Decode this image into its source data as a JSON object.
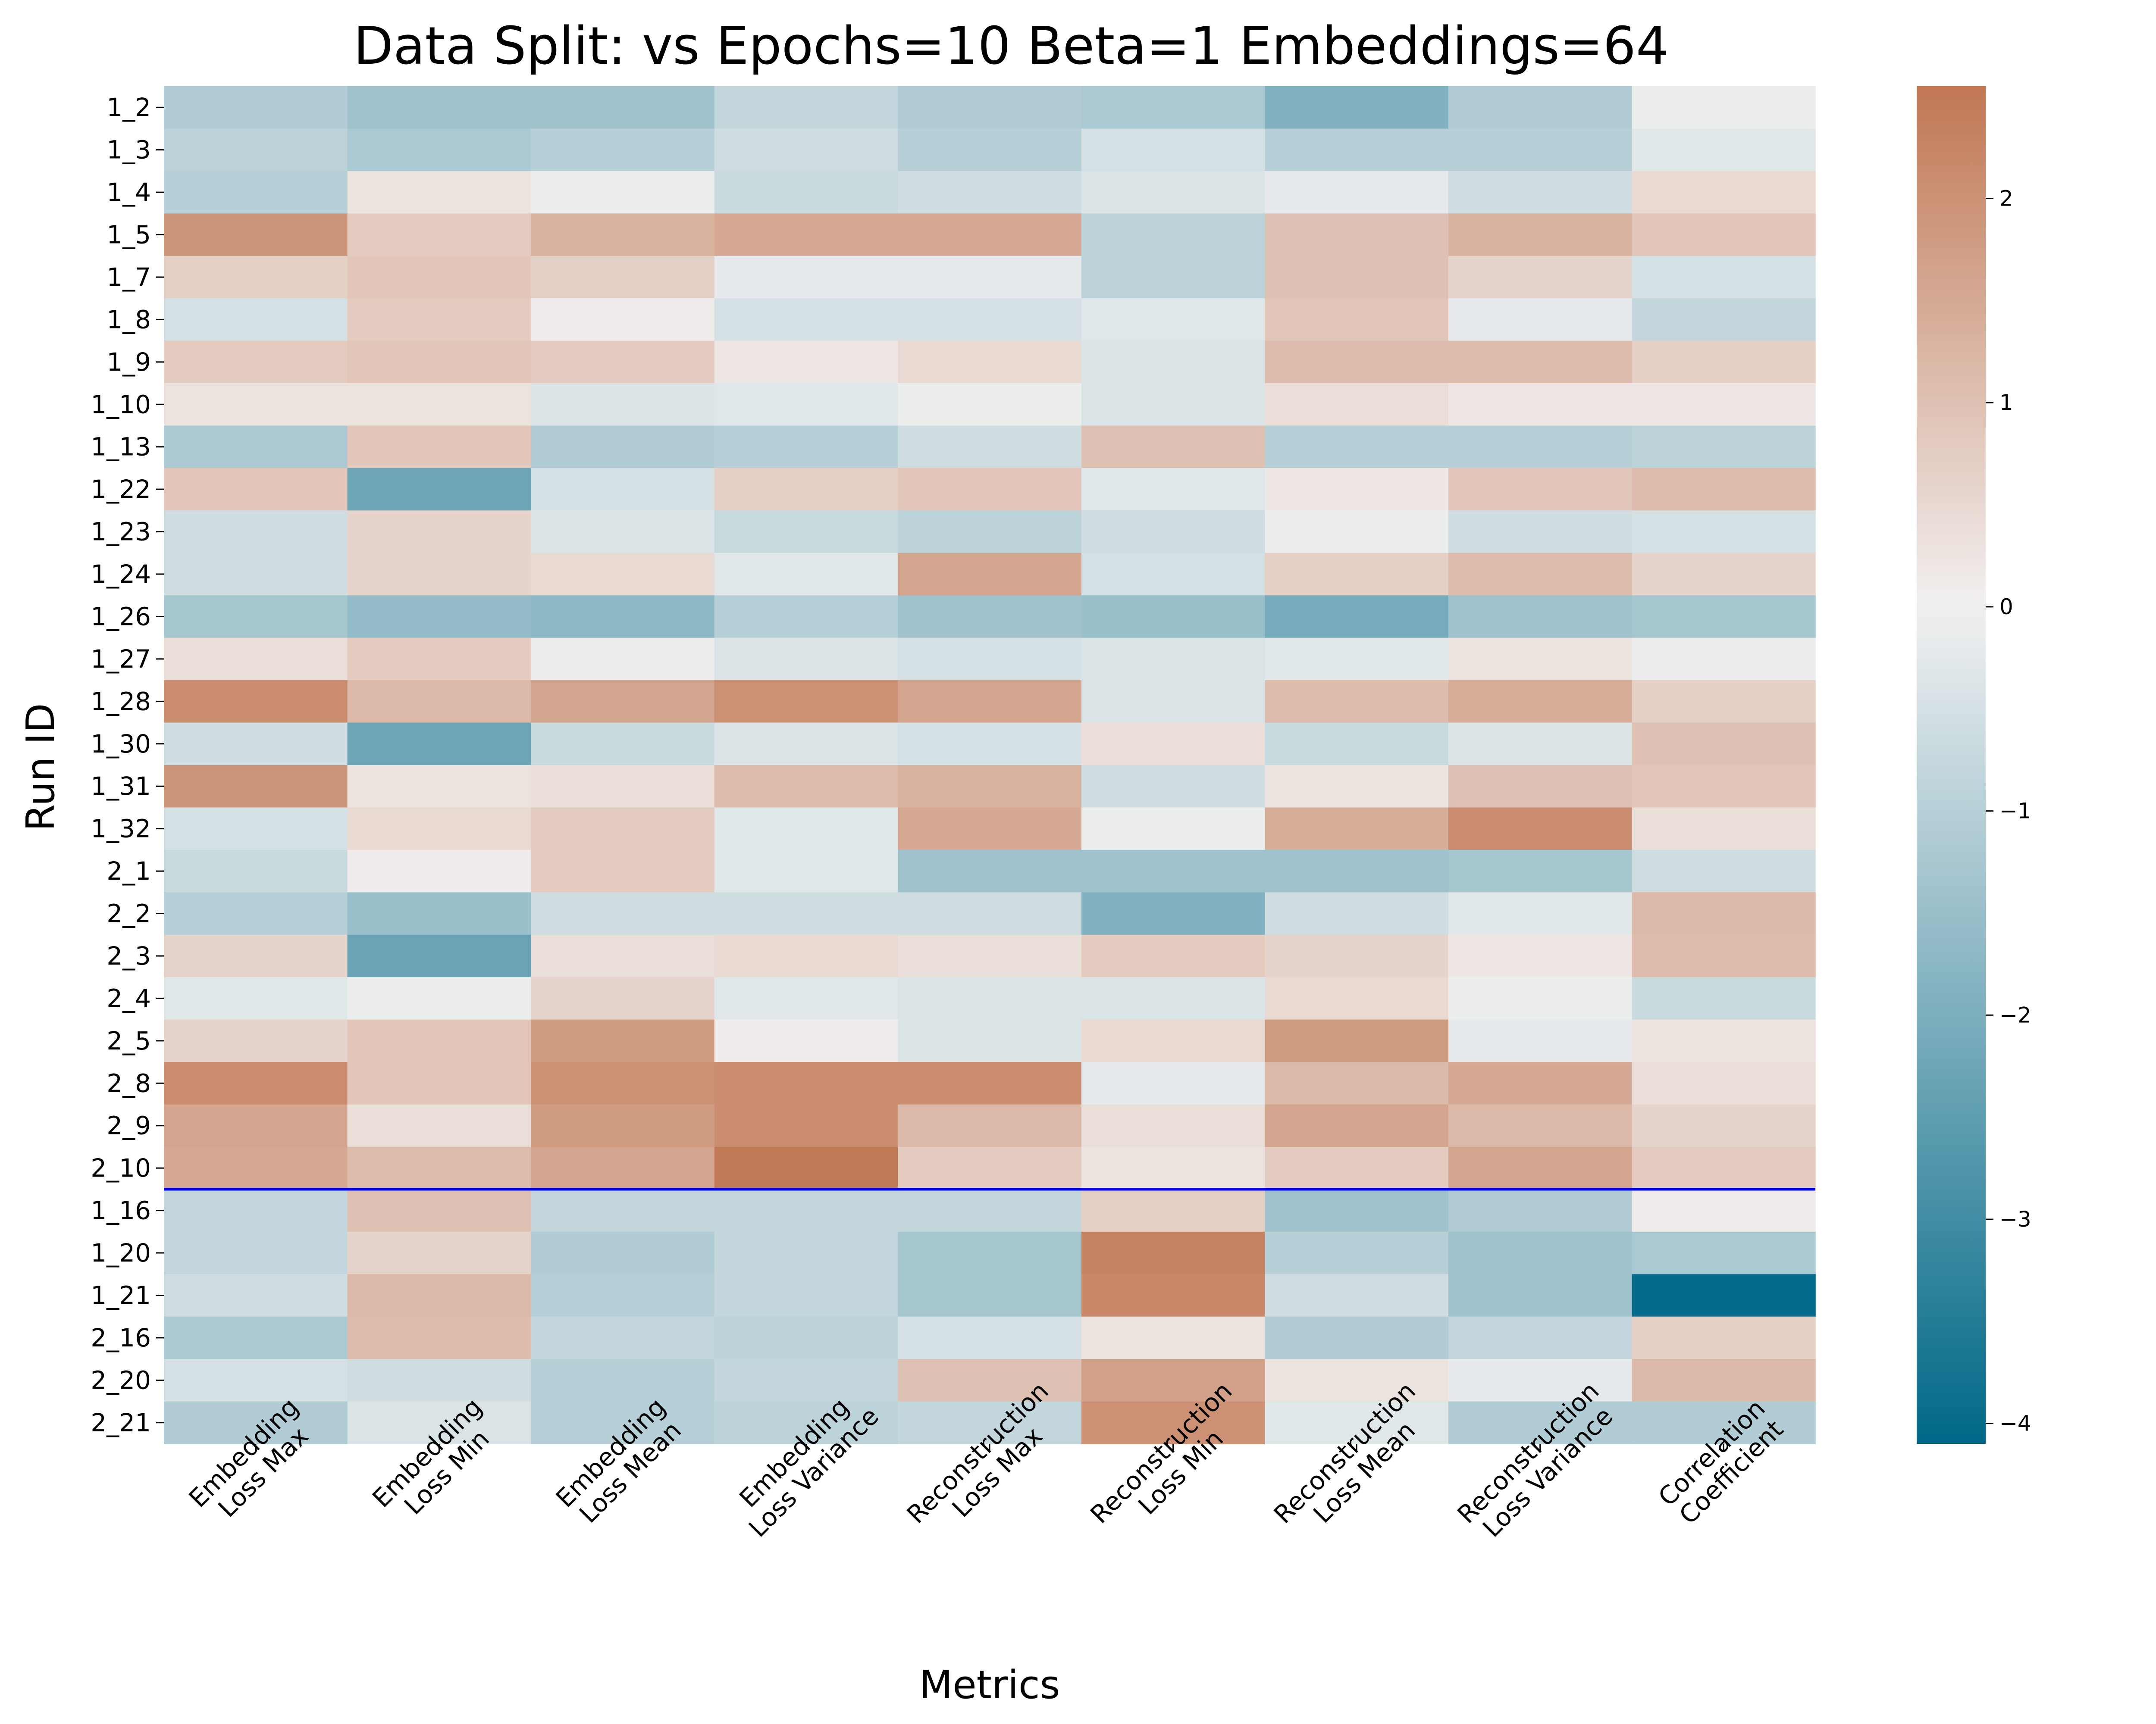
{
  "chart_data": {
    "type": "heatmap",
    "title": "Data Split: vs Epochs=10 Beta=1 Embeddings=64",
    "xlabel": "Metrics",
    "ylabel": "Run ID",
    "columns": [
      [
        "Embedding",
        "Loss Max"
      ],
      [
        "Embedding",
        "Loss Min"
      ],
      [
        "Embedding",
        "Loss Mean"
      ],
      [
        "Embedding",
        "Loss Variance"
      ],
      [
        "Reconstruction",
        "Loss Max"
      ],
      [
        "Reconstruction",
        "Loss Min"
      ],
      [
        "Reconstruction",
        "Loss Mean"
      ],
      [
        "Reconstruction",
        "Loss Variance"
      ],
      [
        "Correlation",
        "Coefficient"
      ]
    ],
    "rows": [
      "1_2",
      "1_3",
      "1_4",
      "1_5",
      "1_7",
      "1_8",
      "1_9",
      "1_10",
      "1_13",
      "1_22",
      "1_23",
      "1_24",
      "1_26",
      "1_27",
      "1_28",
      "1_30",
      "1_31",
      "1_32",
      "2_1",
      "2_2",
      "2_3",
      "2_4",
      "2_5",
      "2_8",
      "2_9",
      "2_10",
      "1_16",
      "1_20",
      "1_21",
      "2_16",
      "2_20",
      "2_21"
    ],
    "values": [
      [
        -1.1,
        -1.4,
        -1.4,
        -0.8,
        -1.1,
        -1.2,
        -1.9,
        -1.1,
        -0.1
      ],
      [
        -0.9,
        -1.2,
        -1.0,
        -0.6,
        -1.0,
        -0.5,
        -1.0,
        -1.0,
        -0.3
      ],
      [
        -1.0,
        0.3,
        -0.1,
        -0.7,
        -0.6,
        -0.4,
        -0.2,
        -0.6,
        0.5
      ],
      [
        1.9,
        0.8,
        1.3,
        1.5,
        1.5,
        -0.9,
        1.0,
        1.3,
        0.9
      ],
      [
        0.7,
        0.9,
        0.7,
        -0.2,
        -0.2,
        -0.9,
        1.0,
        0.6,
        -0.5
      ],
      [
        -0.5,
        0.8,
        0.1,
        -0.5,
        -0.5,
        -0.3,
        0.9,
        -0.2,
        -0.8
      ],
      [
        0.8,
        0.9,
        0.8,
        0.2,
        0.5,
        -0.4,
        1.1,
        1.1,
        0.7
      ],
      [
        0.3,
        0.3,
        -0.4,
        -0.3,
        -0.1,
        -0.4,
        0.4,
        0.2,
        0.2
      ],
      [
        -1.2,
        0.9,
        -1.1,
        -1.0,
        -0.6,
        1.0,
        -1.0,
        -1.0,
        -0.9
      ],
      [
        0.9,
        -2.2,
        -0.5,
        0.7,
        0.9,
        -0.3,
        0.2,
        0.9,
        1.1
      ],
      [
        -0.6,
        0.6,
        -0.4,
        -0.7,
        -0.9,
        -0.6,
        -0.1,
        -0.6,
        -0.5
      ],
      [
        -0.6,
        0.6,
        0.5,
        -0.3,
        1.6,
        -0.5,
        0.7,
        1.1,
        0.6
      ],
      [
        -1.3,
        -1.6,
        -1.7,
        -1.0,
        -1.4,
        -1.5,
        -2.1,
        -1.4,
        -1.3
      ],
      [
        0.4,
        0.8,
        -0.1,
        -0.4,
        -0.5,
        -0.4,
        -0.3,
        0.3,
        -0.1
      ],
      [
        2.1,
        1.2,
        1.6,
        2.0,
        1.6,
        -0.4,
        1.1,
        1.4,
        0.7
      ],
      [
        -0.6,
        -2.2,
        -0.7,
        -0.4,
        -0.5,
        0.4,
        -0.7,
        -0.4,
        1.0
      ],
      [
        1.9,
        0.3,
        0.4,
        1.1,
        1.3,
        -0.6,
        0.3,
        1.0,
        0.9
      ],
      [
        -0.5,
        0.5,
        0.8,
        -0.3,
        1.5,
        -0.1,
        1.4,
        2.1,
        0.4
      ],
      [
        -0.7,
        0.1,
        0.8,
        -0.3,
        -1.4,
        -1.4,
        -1.4,
        -1.3,
        -0.6
      ],
      [
        -1.0,
        -1.5,
        -0.6,
        -0.6,
        -0.6,
        -1.9,
        -0.6,
        -0.3,
        1.2
      ],
      [
        0.6,
        -2.3,
        0.4,
        0.5,
        0.4,
        0.8,
        0.6,
        0.2,
        1.1
      ],
      [
        -0.3,
        -0.1,
        0.6,
        -0.3,
        -0.4,
        -0.4,
        0.5,
        -0.1,
        -0.7
      ],
      [
        0.6,
        0.9,
        1.8,
        0.1,
        -0.4,
        0.5,
        1.8,
        -0.2,
        0.3
      ],
      [
        2.1,
        0.9,
        2.0,
        2.1,
        2.1,
        -0.2,
        1.2,
        1.5,
        0.4
      ],
      [
        1.6,
        0.4,
        1.8,
        2.1,
        1.2,
        0.4,
        1.6,
        1.2,
        0.6
      ],
      [
        1.5,
        1.1,
        1.6,
        2.5,
        0.8,
        0.3,
        0.8,
        1.6,
        0.8
      ],
      [
        -0.8,
        1.0,
        -0.8,
        -0.8,
        -0.8,
        0.7,
        -1.4,
        -1.1,
        0.1
      ],
      [
        -0.8,
        0.6,
        -1.1,
        -0.8,
        -1.3,
        2.3,
        -1.0,
        -1.4,
        -1.2
      ],
      [
        -0.6,
        1.2,
        -1.0,
        -0.8,
        -1.3,
        2.2,
        -0.6,
        -1.4,
        -4.0
      ],
      [
        -1.2,
        1.1,
        -0.8,
        -0.9,
        -0.5,
        0.3,
        -1.1,
        -0.8,
        0.7
      ],
      [
        -0.5,
        -0.6,
        -1.0,
        -0.8,
        1.0,
        1.7,
        0.3,
        -0.2,
        1.2
      ],
      [
        -1.1,
        -0.4,
        -1.0,
        -0.9,
        -0.8,
        2.0,
        -0.3,
        -1.1,
        -1.1
      ]
    ],
    "separator_after_row": "2_10",
    "separator_color": "#0000ff",
    "colormap": {
      "type": "diverging",
      "low_color": "#006887",
      "mid_color": "#f2f1f1",
      "high_color": "#c17753",
      "vmin": -4.1,
      "vcenter": 0,
      "vmax": 2.55
    },
    "colorbar_ticks": [
      -4,
      -3,
      -2,
      -1,
      0,
      1,
      2
    ],
    "colorbar_tick_labels": [
      "−4",
      "−3",
      "−2",
      "−1",
      "0",
      "1",
      "2"
    ],
    "grid": false,
    "legend": "colorbar-right"
  }
}
